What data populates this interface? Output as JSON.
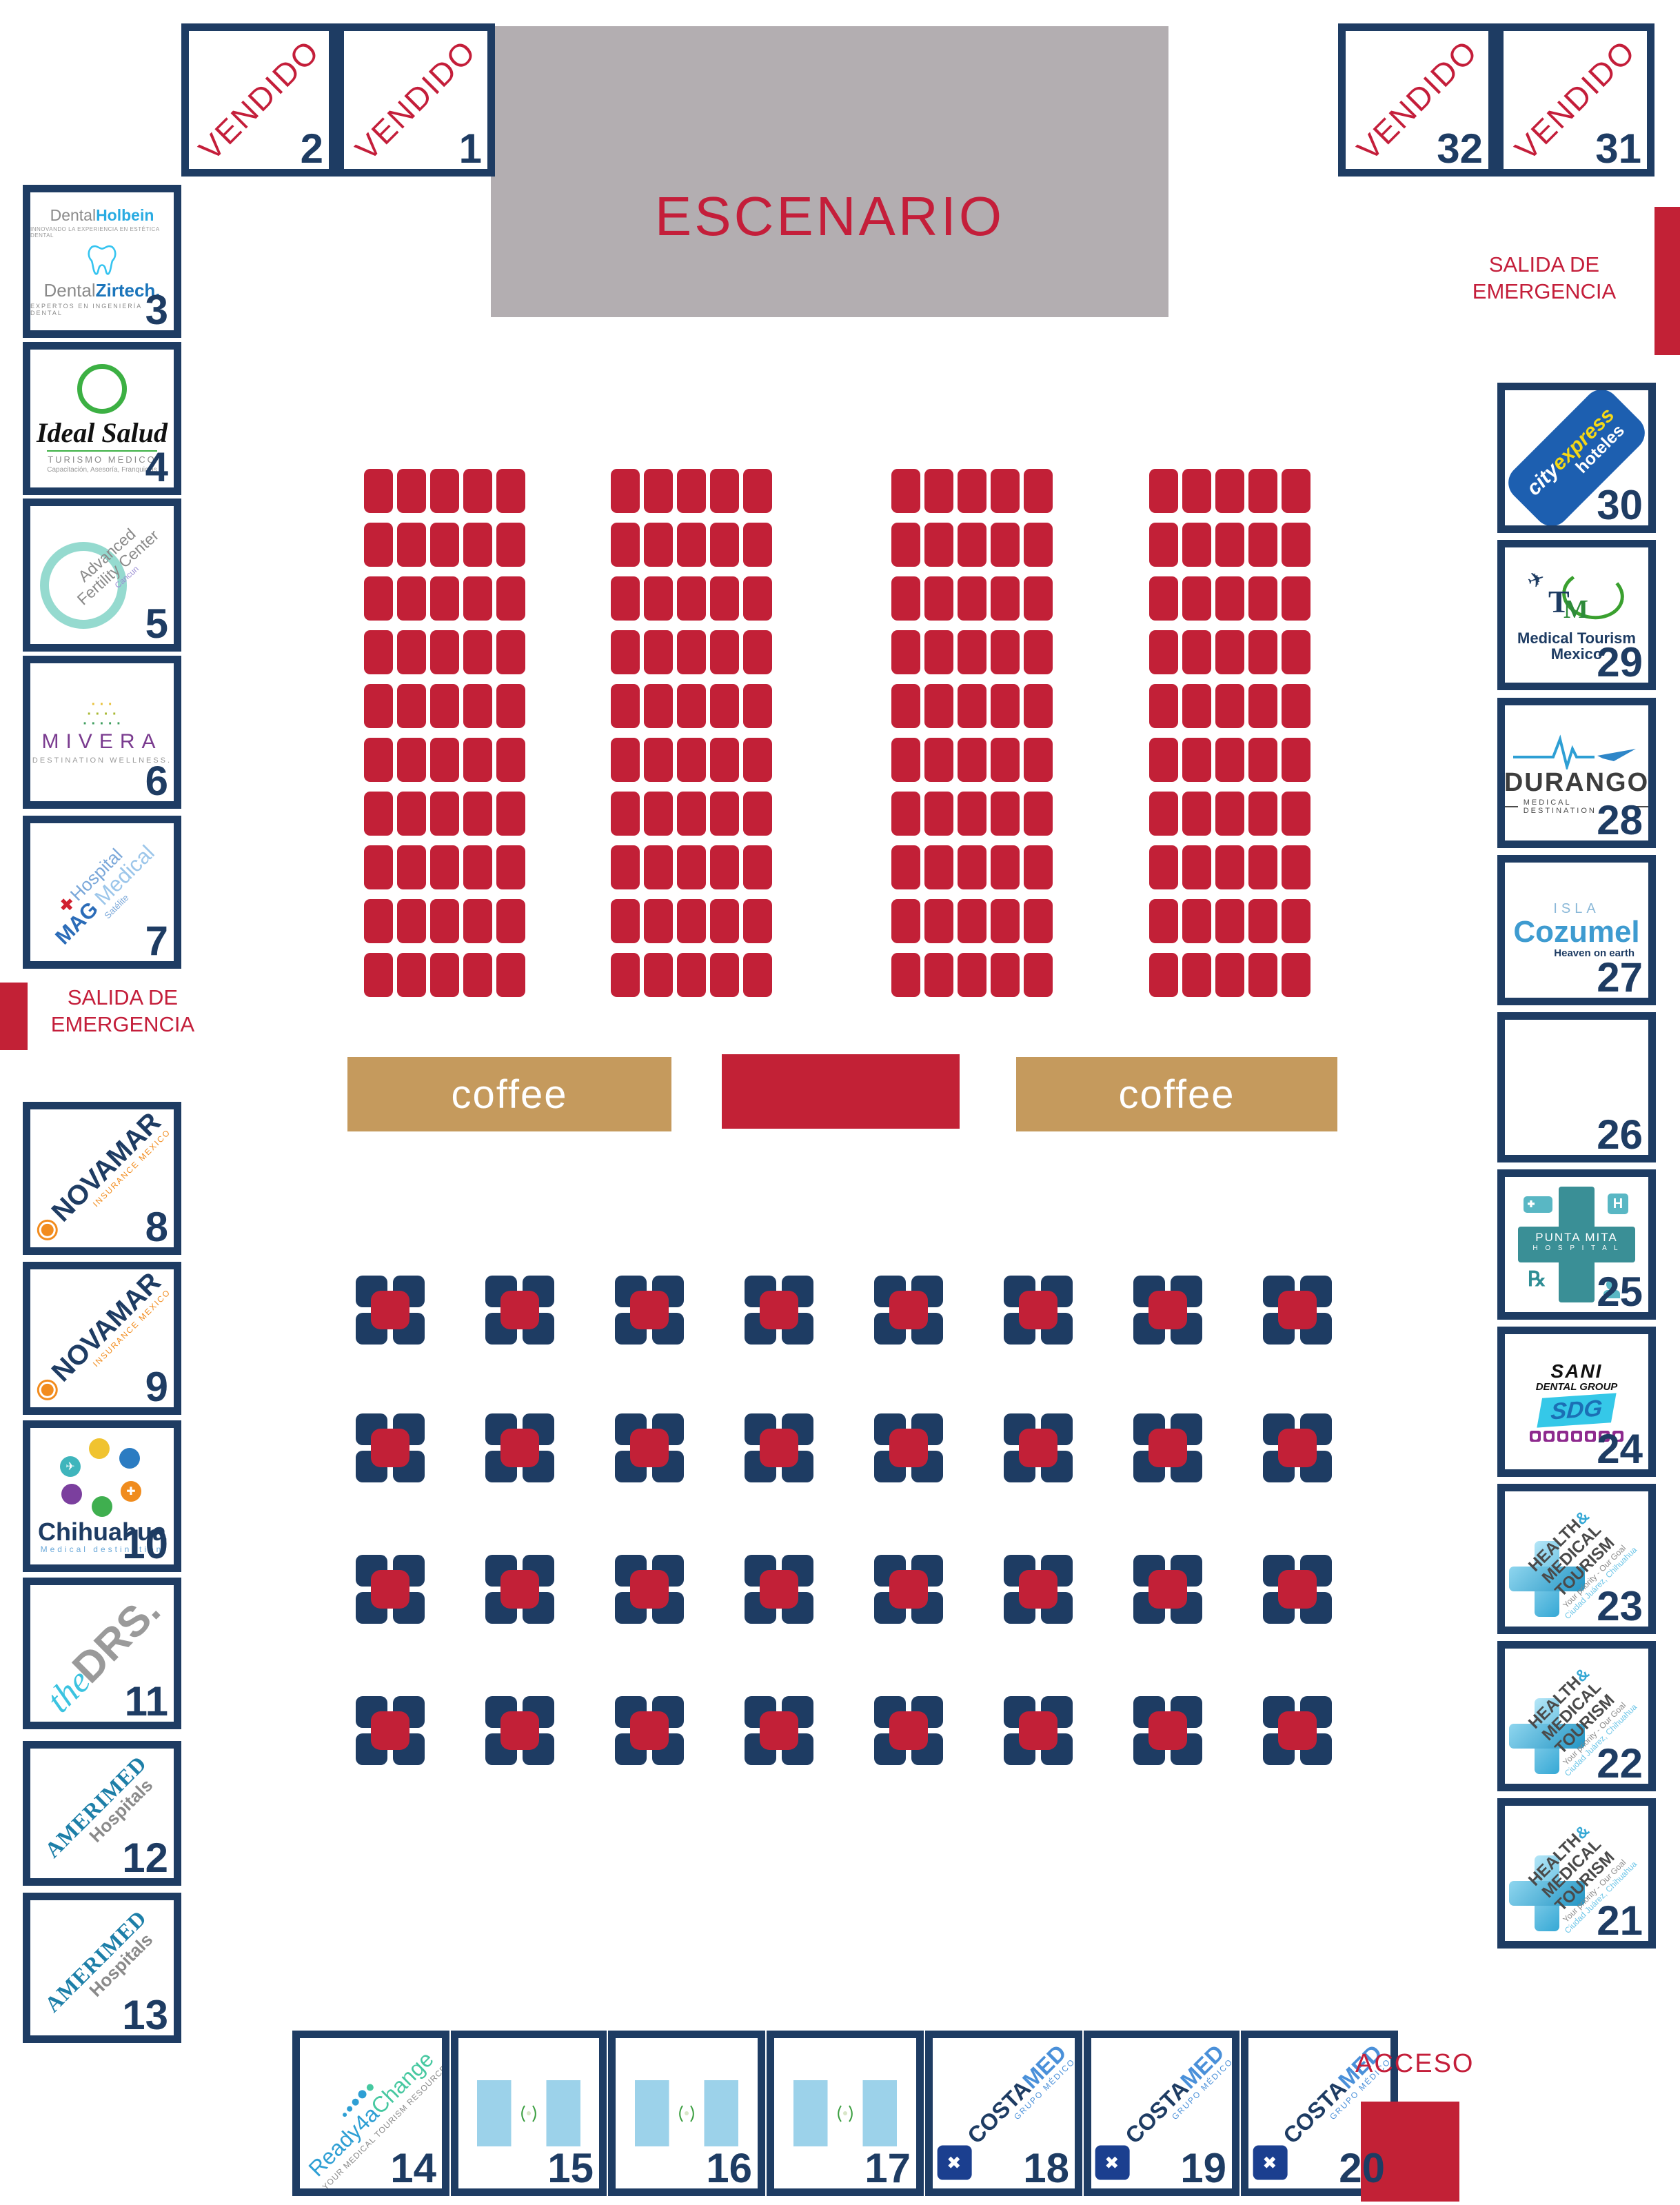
{
  "stage": {
    "label": "ESCENARIO"
  },
  "labels": {
    "sold": "VENDIDO",
    "coffee": "coffee",
    "access": "ACCESO",
    "emergency_line1": "SALIDA DE",
    "emergency_line2": "EMERGENCIA"
  },
  "colors": {
    "navy": "#1e3c63",
    "red": "#c22136",
    "text_red": "#c41e3a",
    "stage_gray": "#b3aeb1",
    "coffee_tan": "#c59a5d",
    "flag_blue": "#9cd2ea"
  },
  "seating": {
    "columns": 4,
    "rows_per_column": 10,
    "seats_per_row": 5,
    "total_seats": 200
  },
  "round_tables": {
    "rows": 4,
    "columns": 8,
    "total": 32
  },
  "booths": {
    "b1": {
      "number": "1"
    },
    "b2": {
      "number": "2"
    },
    "b3": {
      "number": "3",
      "brand1_gray": "Dental",
      "brand1_accent": "Holbein",
      "tagline1": "INNOVANDO LA EXPERIENCIA EN ESTÉTICA DENTAL",
      "brand2_gray": "Dental",
      "brand2_accent": "Zirtech.",
      "tagline2": "EXPERTOS EN INGENIERÍA DENTAL"
    },
    "b4": {
      "number": "4",
      "brand": "Ideal Salud",
      "tagline1": "TURISMO MEDICO",
      "tagline2": "Capacitación, Asesoría, Franquicias"
    },
    "b5": {
      "number": "5",
      "line1": "Advanced",
      "line2": "Fertility Center",
      "line3": "Cancun"
    },
    "b6": {
      "number": "6",
      "brand": "MIVERA",
      "tagline": "DESTINATION WELLNESS."
    },
    "b7": {
      "number": "7",
      "line1": "Hospital",
      "line2": "MAG",
      "line2b": "Medical",
      "line3": "Satélite"
    },
    "b8": {
      "number": "8",
      "brand": "NOVAMAR",
      "tagline": "INSURANCE MEXICO"
    },
    "b9": {
      "number": "9",
      "brand": "NOVAMAR",
      "tagline": "INSURANCE MEXICO"
    },
    "b10": {
      "number": "10",
      "brand": "Chihuahua",
      "tagline": "Medical destination"
    },
    "b11": {
      "number": "11",
      "script": "the",
      "brand": "DRS."
    },
    "b12": {
      "number": "12",
      "brand": "AMERIMED",
      "sub": "Hospitals"
    },
    "b13": {
      "number": "13",
      "brand": "AMERIMED",
      "sub": "Hospitals"
    },
    "b14": {
      "number": "14",
      "brand1": "Ready4a",
      "brand2": "Change",
      "tagline": "YOUR MEDICAL TOURISM RESOURCE"
    },
    "b15": {
      "number": "15",
      "flag": "guatemala"
    },
    "b16": {
      "number": "16",
      "flag": "guatemala"
    },
    "b17": {
      "number": "17",
      "flag": "guatemala"
    },
    "b18": {
      "number": "18",
      "brand1": "COSTA",
      "brand2": "MED",
      "tagline": "GRUPO MÉDICO",
      "icon_plus": "✚"
    },
    "b19": {
      "number": "19",
      "brand1": "COSTA",
      "brand2": "MED",
      "tagline": "GRUPO MÉDICO",
      "icon_plus": "✚"
    },
    "b20": {
      "number": "20",
      "brand1": "COSTA",
      "brand2": "MED",
      "tagline": "GRUPO MÉDICO",
      "icon_plus": "✚"
    },
    "b21": {
      "number": "21",
      "line1a": "HEALTH",
      "amp": "&",
      "line2": "MEDICAL TOURISM",
      "line3": "Your priority - Our Goal",
      "line4": "Ciudad Juárez, Chihuahua"
    },
    "b22": {
      "number": "22",
      "line1a": "HEALTH",
      "amp": "&",
      "line2": "MEDICAL TOURISM",
      "line3": "Your priority - Our Goal",
      "line4": "Ciudad Juárez, Chihuahua"
    },
    "b23": {
      "number": "23",
      "line1a": "HEALTH",
      "amp": "&",
      "line2": "MEDICAL TOURISM",
      "line3": "Your priority - Our Goal",
      "line4": "Ciudad Juárez, Chihuahua"
    },
    "b24": {
      "number": "24",
      "brand1": "SANI",
      "brand2": "DENTAL GROUP",
      "monogram": "SDG"
    },
    "b25": {
      "number": "25",
      "line1": "PUNTA MITA",
      "line2": "H O S P I T A L",
      "h_sign": "H",
      "rx": "℞"
    },
    "b26": {
      "number": "26"
    },
    "b27": {
      "number": "27",
      "line1": "ISLA",
      "line2": "Cozumel",
      "line3": "Heaven on earth"
    },
    "b28": {
      "number": "28",
      "brand": "DURANGO",
      "tagline": "MEDICAL DESTINATION"
    },
    "b29": {
      "number": "29",
      "monogram_t": "T",
      "monogram_m": "M",
      "plane": "✈",
      "line1": "Medical Tourism",
      "line2": "Mexico"
    },
    "b30": {
      "number": "30",
      "brand1": "city",
      "brand2": "express",
      "brand3": "hoteles"
    },
    "b31": {
      "number": "31"
    },
    "b32": {
      "number": "32"
    }
  }
}
